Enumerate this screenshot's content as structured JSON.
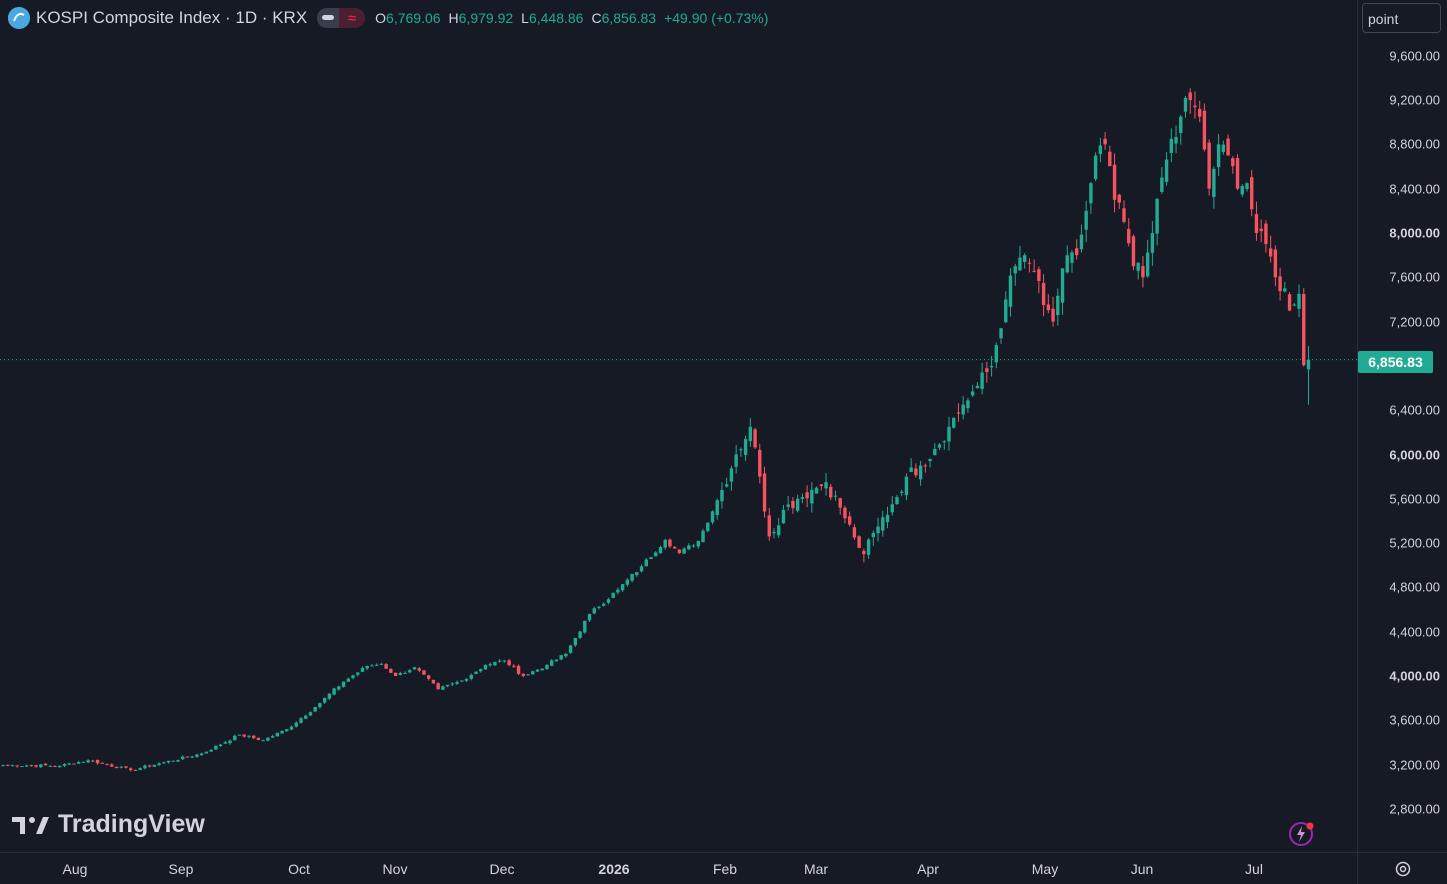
{
  "header": {
    "symbol": "KOSPI Composite Index · 1D · KRX",
    "symbol_icon": "kospi-logo-icon",
    "ohlc": {
      "o_label": "O",
      "o_value": "6,769.06",
      "h_label": "H",
      "h_value": "6,979.92",
      "l_label": "L",
      "l_value": "6,448.86",
      "c_label": "C",
      "c_value": "6,856.83",
      "change": "+49.90 (+0.73%)"
    }
  },
  "unit_selector": "point",
  "last_price_label": "6,856.83",
  "watermark": "TradingView",
  "colors": {
    "background": "#161a25",
    "up": "#22ab94",
    "down": "#f7525f",
    "text": "#d1d4dc",
    "grid_border": "#2a2e39"
  },
  "price_axis": {
    "ticks": [
      {
        "label": "9,600.00",
        "bold": false
      },
      {
        "label": "9,200.00",
        "bold": false
      },
      {
        "label": "8,800.00",
        "bold": false
      },
      {
        "label": "8,400.00",
        "bold": false
      },
      {
        "label": "8,000.00",
        "bold": true
      },
      {
        "label": "7,600.00",
        "bold": false
      },
      {
        "label": "7,200.00",
        "bold": false
      },
      {
        "label": "6,400.00",
        "bold": false
      },
      {
        "label": "6,000.00",
        "bold": true
      },
      {
        "label": "5,600.00",
        "bold": false
      },
      {
        "label": "5,200.00",
        "bold": false
      },
      {
        "label": "4,800.00",
        "bold": false
      },
      {
        "label": "4,400.00",
        "bold": false
      },
      {
        "label": "4,000.00",
        "bold": true
      },
      {
        "label": "3,600.00",
        "bold": false
      },
      {
        "label": "3,200.00",
        "bold": false
      },
      {
        "label": "2,800.00",
        "bold": false
      }
    ]
  },
  "time_axis": {
    "labels": [
      {
        "label": "Aug",
        "bold": false
      },
      {
        "label": "Sep",
        "bold": false
      },
      {
        "label": "Oct",
        "bold": false
      },
      {
        "label": "Nov",
        "bold": false
      },
      {
        "label": "Dec",
        "bold": false
      },
      {
        "label": "2026",
        "bold": true
      },
      {
        "label": "Feb",
        "bold": false
      },
      {
        "label": "Mar",
        "bold": false
      },
      {
        "label": "Apr",
        "bold": false
      },
      {
        "label": "May",
        "bold": false
      },
      {
        "label": "Jun",
        "bold": false
      },
      {
        "label": "Jul",
        "bold": false
      }
    ]
  },
  "chart_data": {
    "type": "candlestick",
    "title": "KOSPI Composite Index · 1D · KRX",
    "ylabel": "point",
    "ylim": [
      2600,
      9900
    ],
    "last_close": 6856.83,
    "grid": false,
    "x_axis_months": [
      "Aug",
      "Sep",
      "Oct",
      "Nov",
      "Dec",
      "2026",
      "Feb",
      "Mar",
      "Apr",
      "May",
      "Jun",
      "Jul"
    ],
    "approx_monthly_path": [
      {
        "month": "Aug",
        "close": 3200
      },
      {
        "month": "Sep",
        "close": 3300
      },
      {
        "month": "Oct",
        "close": 3620
      },
      {
        "month": "Nov",
        "close": 4100
      },
      {
        "month": "Dec",
        "close": 4050
      },
      {
        "month": "2026",
        "close": 4350
      },
      {
        "month": "Feb",
        "close": 5150
      },
      {
        "month": "Mar",
        "close": 5500
      },
      {
        "month": "Apr",
        "close": 5550
      },
      {
        "month": "May",
        "close": 7100
      },
      {
        "month": "Jun",
        "close": 8550
      },
      {
        "month": "Jul",
        "close": 7400
      }
    ],
    "series": [
      {
        "name": "KOSPI Composite Index",
        "anchors": [
          [
            0,
            3195
          ],
          [
            12,
            3190
          ],
          [
            18,
            3240
          ],
          [
            27,
            3150
          ],
          [
            33,
            3210
          ],
          [
            42,
            3300
          ],
          [
            50,
            3470
          ],
          [
            55,
            3420
          ],
          [
            60,
            3520
          ],
          [
            66,
            3720
          ],
          [
            72,
            3950
          ],
          [
            77,
            4090
          ],
          [
            80,
            4110
          ],
          [
            83,
            4000
          ],
          [
            87,
            4080
          ],
          [
            92,
            3880
          ],
          [
            97,
            3960
          ],
          [
            102,
            4100
          ],
          [
            106,
            4140
          ],
          [
            110,
            4000
          ],
          [
            115,
            4100
          ],
          [
            119,
            4200
          ],
          [
            124,
            4560
          ],
          [
            130,
            4780
          ],
          [
            135,
            4990
          ],
          [
            140,
            5230
          ],
          [
            143,
            5110
          ],
          [
            147,
            5220
          ],
          [
            152,
            5680
          ],
          [
            155,
            6000
          ],
          [
            158,
            6250
          ],
          [
            160,
            5800
          ],
          [
            162,
            5260
          ],
          [
            165,
            5500
          ],
          [
            168,
            5600
          ],
          [
            171,
            5680
          ],
          [
            174,
            5750
          ],
          [
            177,
            5520
          ],
          [
            180,
            5250
          ],
          [
            182,
            5100
          ],
          [
            185,
            5350
          ],
          [
            188,
            5550
          ],
          [
            191,
            5800
          ],
          [
            194,
            5900
          ],
          [
            197,
            6050
          ],
          [
            200,
            6250
          ],
          [
            203,
            6450
          ],
          [
            206,
            6620
          ],
          [
            209,
            6800
          ],
          [
            212,
            7400
          ],
          [
            214,
            7700
          ],
          [
            216,
            7800
          ],
          [
            218,
            7650
          ],
          [
            220,
            7350
          ],
          [
            222,
            7200
          ],
          [
            224,
            7680
          ],
          [
            227,
            7800
          ],
          [
            229,
            8200
          ],
          [
            231,
            8700
          ],
          [
            233,
            8800
          ],
          [
            235,
            8300
          ],
          [
            237,
            8100
          ],
          [
            239,
            7700
          ],
          [
            241,
            7600
          ],
          [
            243,
            8000
          ],
          [
            245,
            8500
          ],
          [
            247,
            8850
          ],
          [
            249,
            9050
          ],
          [
            251,
            9200
          ],
          [
            253,
            9050
          ],
          [
            255,
            8400
          ],
          [
            257,
            8800
          ],
          [
            259,
            8700
          ],
          [
            261,
            8400
          ],
          [
            263,
            8450
          ],
          [
            265,
            8000
          ],
          [
            267,
            7900
          ],
          [
            269,
            7600
          ],
          [
            271,
            7500
          ],
          [
            272,
            7300
          ],
          [
            274,
            7450
          ],
          [
            275,
            6807
          ],
          [
            276,
            6857
          ]
        ]
      }
    ]
  }
}
